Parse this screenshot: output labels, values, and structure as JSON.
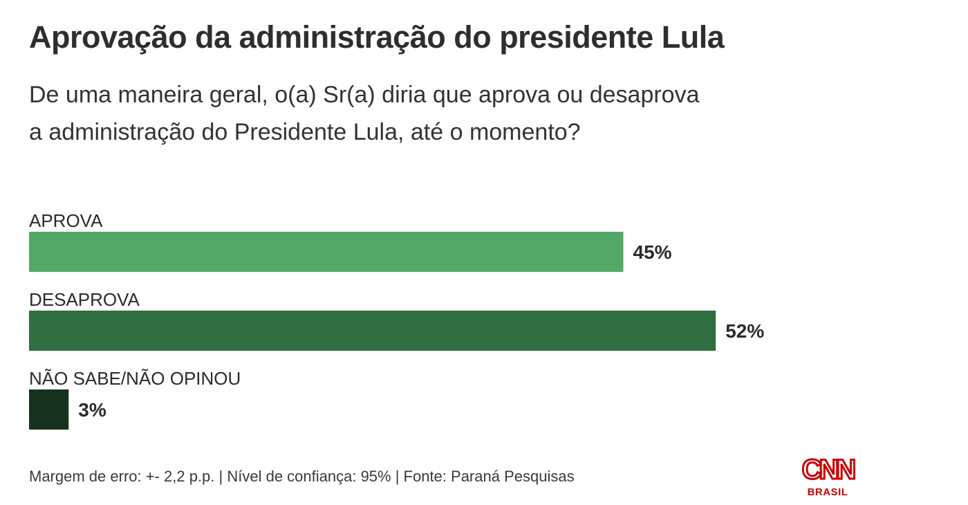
{
  "title": "Aprovação da administração do presidente Lula",
  "subtitle_lines": [
    "De uma maneira geral, o(a) Sr(a) diria que aprova ou desaprova",
    "a administração do Presidente Lula, até o momento?"
  ],
  "footer": "Margem de erro: +- 2,2 p.p. | Nível de confiança: 95% | Fonte: Paraná Pesquisas",
  "logo": {
    "text_main": "CNN",
    "text_sub": "BRASIL",
    "color": "#cc0000"
  },
  "chart_data": {
    "type": "bar",
    "orientation": "horizontal",
    "title": "Aprovação da administração do presidente Lula",
    "categories": [
      "APROVA",
      "DESAPROVA",
      "NÃO SABE/NÃO OPINOU"
    ],
    "values": [
      45,
      52,
      3
    ],
    "value_labels": [
      "45%",
      "52%",
      "3%"
    ],
    "unit": "%",
    "colors": [
      "#52a866",
      "#2f6f40",
      "#16321f"
    ],
    "xlim": [
      0,
      70
    ],
    "grid": false,
    "legend": "none"
  }
}
